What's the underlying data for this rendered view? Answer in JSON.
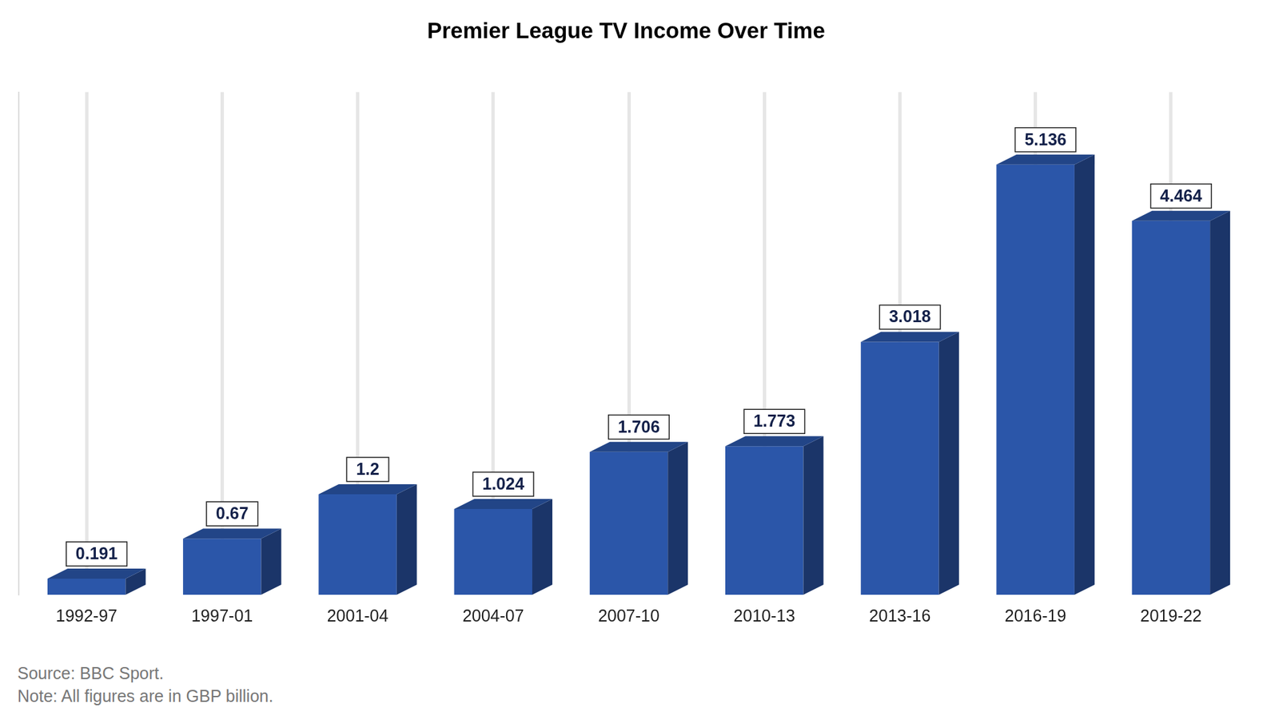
{
  "chart_data": {
    "type": "bar",
    "title": "Premier League TV Income Over Time",
    "categories": [
      "1992-97",
      "1997-01",
      "2001-04",
      "2004-07",
      "2007-10",
      "2010-13",
      "2013-16",
      "2016-19",
      "2019-22"
    ],
    "values": [
      0.191,
      0.67,
      1.2,
      1.024,
      1.706,
      1.773,
      3.018,
      5.136,
      4.464
    ],
    "color": "#2b56a9",
    "ylim": [
      0,
      6
    ],
    "grid": true,
    "data_labels": true,
    "tick_labels": "x",
    "source": "Source: BBC Sport.",
    "note": "Note: All figures are in GBP billion."
  }
}
